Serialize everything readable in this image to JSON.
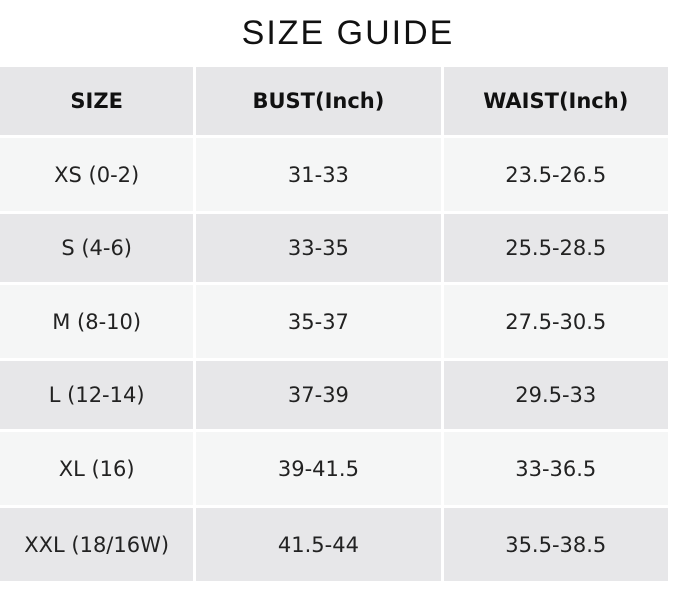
{
  "title": "SIZE GUIDE",
  "headers": [
    "SIZE",
    "BUST(Inch)",
    "WAIST(Inch)"
  ],
  "rows": [
    [
      "XS (0-2)",
      "31-33",
      "23.5-26.5"
    ],
    [
      "S (4-6)",
      "33-35",
      "25.5-28.5"
    ],
    [
      "M (8-10)",
      "35-37",
      "27.5-30.5"
    ],
    [
      "L (12-14)",
      "37-39",
      "29.5-33"
    ],
    [
      "XL (16)",
      "39-41.5",
      "33-36.5"
    ],
    [
      "XXL (18/16W)",
      "41.5-44",
      "35.5-38.5"
    ]
  ]
}
